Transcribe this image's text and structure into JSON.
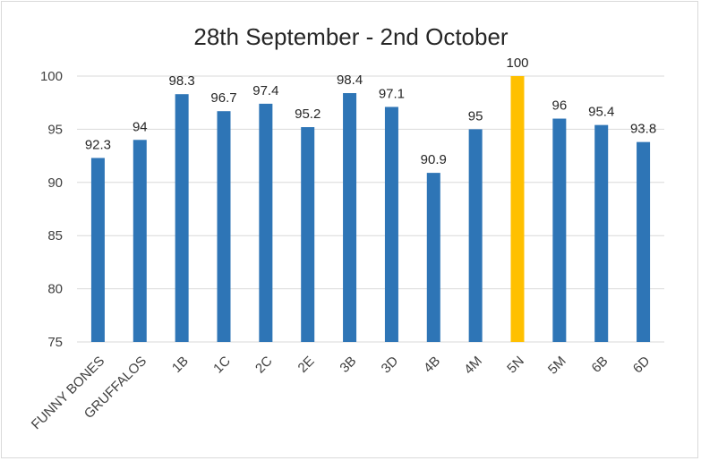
{
  "chart_data": {
    "type": "bar",
    "title": "28th September - 2nd October",
    "xlabel": "",
    "ylabel": "",
    "categories": [
      "FUNNY BONES",
      "GRUFFALOS",
      "1B",
      "1C",
      "2C",
      "2E",
      "3B",
      "3D",
      "4B",
      "4M",
      "5N",
      "5M",
      "6B",
      "6D"
    ],
    "values": [
      92.3,
      94,
      98.3,
      96.7,
      97.4,
      95.2,
      98.4,
      97.1,
      90.9,
      95,
      100,
      96,
      95.4,
      93.8
    ],
    "ylim": [
      75,
      100
    ],
    "yticks": [
      75,
      80,
      85,
      90,
      95,
      100
    ],
    "grid": true,
    "legend": "none",
    "colors": {
      "bar": "#2e75b6",
      "highlight": "#ffc000",
      "highlight_category": "5N"
    }
  }
}
